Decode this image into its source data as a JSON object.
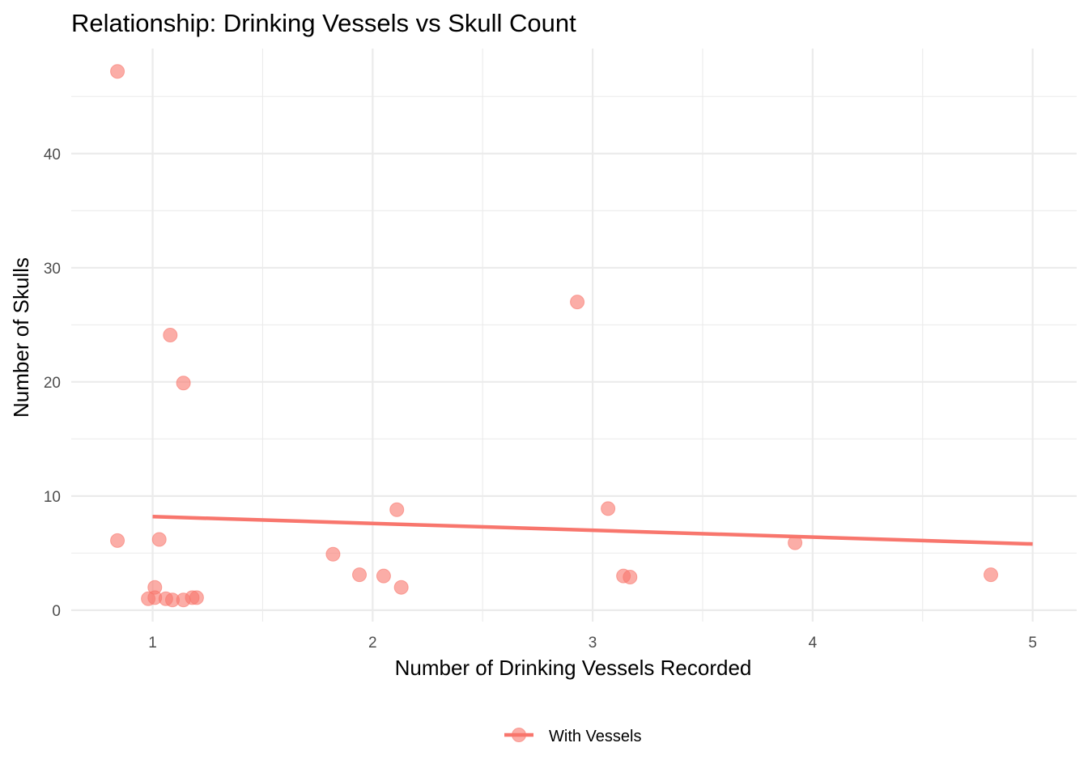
{
  "chart_data": {
    "type": "scatter",
    "title": "Relationship: Drinking Vessels vs Skull Count",
    "xlabel": "Number of Drinking Vessels Recorded",
    "ylabel": "Number of Skulls",
    "xlim": [
      0.63,
      5.2
    ],
    "ylim": [
      -1.0,
      49.2
    ],
    "x_ticks": [
      1,
      2,
      3,
      4,
      5
    ],
    "x_tick_labels": [
      "1",
      "2",
      "3",
      "4",
      "5"
    ],
    "y_ticks": [
      0,
      10,
      20,
      30,
      40
    ],
    "y_tick_labels": [
      "0",
      "10",
      "20",
      "30",
      "40"
    ],
    "grid": true,
    "legend_position": "bottom",
    "series": [
      {
        "name": "With Vessels",
        "color": "#F8766D",
        "points": [
          {
            "x": 0.84,
            "y": 47.2
          },
          {
            "x": 0.84,
            "y": 6.1
          },
          {
            "x": 0.98,
            "y": 1.0
          },
          {
            "x": 1.01,
            "y": 2.0
          },
          {
            "x": 1.01,
            "y": 1.1
          },
          {
            "x": 1.03,
            "y": 6.2
          },
          {
            "x": 1.06,
            "y": 1.0
          },
          {
            "x": 1.08,
            "y": 24.1
          },
          {
            "x": 1.09,
            "y": 0.9
          },
          {
            "x": 1.14,
            "y": 19.9
          },
          {
            "x": 1.14,
            "y": 0.9
          },
          {
            "x": 1.18,
            "y": 1.1
          },
          {
            "x": 1.2,
            "y": 1.1
          },
          {
            "x": 1.82,
            "y": 4.9
          },
          {
            "x": 1.94,
            "y": 3.1
          },
          {
            "x": 2.05,
            "y": 3.0
          },
          {
            "x": 2.11,
            "y": 8.8
          },
          {
            "x": 2.13,
            "y": 2.0
          },
          {
            "x": 2.93,
            "y": 27.0
          },
          {
            "x": 3.07,
            "y": 8.9
          },
          {
            "x": 3.14,
            "y": 3.0
          },
          {
            "x": 3.17,
            "y": 2.9
          },
          {
            "x": 3.92,
            "y": 5.9
          },
          {
            "x": 4.81,
            "y": 3.1
          }
        ],
        "trend_line": {
          "x": [
            1,
            5
          ],
          "y": [
            8.2,
            5.8
          ]
        }
      }
    ]
  }
}
